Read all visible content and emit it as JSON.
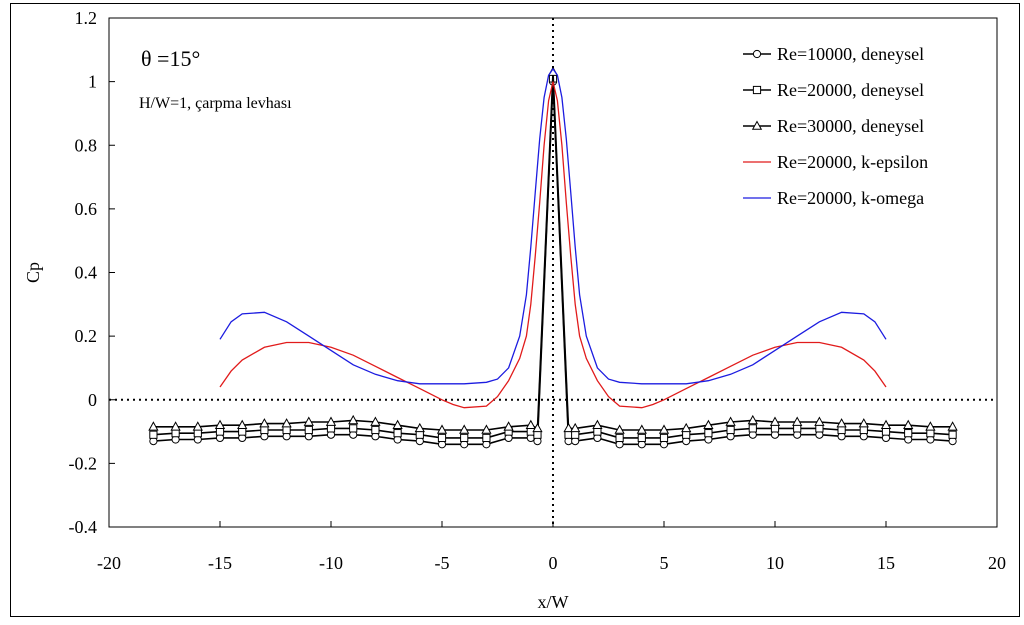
{
  "chart_data": {
    "type": "line",
    "xlabel": "x/W",
    "ylabel": "Cp",
    "xlim": [
      -20,
      20
    ],
    "ylim": [
      -0.4,
      1.2
    ],
    "x_ticks": [
      "-20",
      "-15",
      "-10",
      "-5",
      "0",
      "5",
      "10",
      "15",
      "20"
    ],
    "y_ticks": [
      "-0.4",
      "-0.2",
      "0",
      "0.2",
      "0.4",
      "0.6",
      "0.8",
      "1",
      "1.2"
    ],
    "grid": false,
    "legend_position": "top-right",
    "annotations": {
      "angle": "θ =15°",
      "config": "H/W=1, çarpma levhası"
    },
    "reference_lines": {
      "x": 0,
      "y": 0,
      "style": "dotted"
    },
    "series": [
      {
        "name": "Re=10000, deneysel",
        "marker": "circle",
        "color": "#000000",
        "x": [
          -18,
          -17,
          -16,
          -15,
          -14,
          -13,
          -12,
          -11,
          -10,
          -9,
          -8,
          -7,
          -6,
          -5,
          -4,
          -3,
          -2,
          -1,
          -0.7,
          0,
          0.7,
          1,
          2,
          3,
          4,
          5,
          6,
          7,
          8,
          9,
          10,
          11,
          12,
          13,
          14,
          15,
          16,
          17,
          18
        ],
        "y": [
          -0.13,
          -0.125,
          -0.125,
          -0.12,
          -0.12,
          -0.115,
          -0.115,
          -0.115,
          -0.11,
          -0.11,
          -0.115,
          -0.125,
          -0.13,
          -0.14,
          -0.14,
          -0.14,
          -0.12,
          -0.12,
          -0.13,
          1.0,
          -0.13,
          -0.13,
          -0.12,
          -0.14,
          -0.14,
          -0.14,
          -0.13,
          -0.125,
          -0.115,
          -0.11,
          -0.11,
          -0.11,
          -0.11,
          -0.115,
          -0.115,
          -0.12,
          -0.125,
          -0.125,
          -0.13
        ]
      },
      {
        "name": "Re=20000, deneysel",
        "marker": "square",
        "color": "#000000",
        "x": [
          -18,
          -17,
          -16,
          -15,
          -14,
          -13,
          -12,
          -11,
          -10,
          -9,
          -8,
          -7,
          -6,
          -5,
          -4,
          -3,
          -2,
          -1,
          -0.7,
          0,
          0.7,
          1,
          2,
          3,
          4,
          5,
          6,
          7,
          8,
          9,
          10,
          11,
          12,
          13,
          14,
          15,
          16,
          17,
          18
        ],
        "y": [
          -0.11,
          -0.105,
          -0.105,
          -0.1,
          -0.1,
          -0.095,
          -0.095,
          -0.095,
          -0.09,
          -0.09,
          -0.095,
          -0.105,
          -0.11,
          -0.12,
          -0.12,
          -0.12,
          -0.1,
          -0.1,
          -0.11,
          1.01,
          -0.11,
          -0.11,
          -0.1,
          -0.12,
          -0.12,
          -0.12,
          -0.11,
          -0.105,
          -0.095,
          -0.09,
          -0.09,
          -0.09,
          -0.09,
          -0.095,
          -0.095,
          -0.1,
          -0.105,
          -0.105,
          -0.11
        ]
      },
      {
        "name": "Re=30000, deneysel",
        "marker": "triangle",
        "color": "#000000",
        "x": [
          -18,
          -17,
          -16,
          -15,
          -14,
          -13,
          -12,
          -11,
          -10,
          -9,
          -8,
          -7,
          -6,
          -5,
          -4,
          -3,
          -2,
          -1,
          -0.7,
          0,
          0.7,
          1,
          2,
          3,
          4,
          5,
          6,
          7,
          8,
          9,
          10,
          11,
          12,
          13,
          14,
          15,
          16,
          17,
          18
        ],
        "y": [
          -0.085,
          -0.085,
          -0.085,
          -0.08,
          -0.08,
          -0.075,
          -0.075,
          -0.07,
          -0.07,
          -0.065,
          -0.07,
          -0.08,
          -0.09,
          -0.095,
          -0.095,
          -0.095,
          -0.085,
          -0.08,
          -0.09,
          1.03,
          -0.09,
          -0.09,
          -0.08,
          -0.095,
          -0.095,
          -0.095,
          -0.09,
          -0.08,
          -0.07,
          -0.065,
          -0.07,
          -0.07,
          -0.07,
          -0.075,
          -0.075,
          -0.08,
          -0.08,
          -0.085,
          -0.085
        ]
      },
      {
        "name": "Re=20000, k-epsilon",
        "marker": "none",
        "color": "#e11b1b",
        "x": [
          -15,
          -14.5,
          -14,
          -13,
          -12,
          -11,
          -10,
          -9,
          -8,
          -7,
          -6,
          -5,
          -4.5,
          -4,
          -3,
          -2.5,
          -2,
          -1.5,
          -1.2,
          -1,
          -0.8,
          -0.6,
          -0.4,
          -0.2,
          0,
          0.2,
          0.4,
          0.6,
          0.8,
          1,
          1.2,
          1.5,
          2,
          2.5,
          3,
          4,
          4.5,
          5,
          6,
          7,
          8,
          9,
          10,
          11,
          12,
          13,
          14,
          14.5,
          15
        ],
        "y": [
          0.04,
          0.09,
          0.125,
          0.165,
          0.18,
          0.18,
          0.165,
          0.14,
          0.105,
          0.07,
          0.035,
          0.0,
          -0.015,
          -0.025,
          -0.02,
          0.01,
          0.06,
          0.13,
          0.2,
          0.3,
          0.45,
          0.62,
          0.8,
          0.94,
          1.0,
          0.94,
          0.8,
          0.62,
          0.45,
          0.3,
          0.2,
          0.13,
          0.06,
          0.01,
          -0.02,
          -0.025,
          -0.015,
          0.0,
          0.035,
          0.07,
          0.105,
          0.14,
          0.165,
          0.18,
          0.18,
          0.165,
          0.125,
          0.09,
          0.04
        ]
      },
      {
        "name": "Re=20000, k-omega",
        "marker": "none",
        "color": "#1c1ce0",
        "x": [
          -15,
          -14.5,
          -14,
          -13,
          -12,
          -11,
          -10,
          -9,
          -8,
          -7,
          -6,
          -5,
          -4,
          -3,
          -2.5,
          -2,
          -1.5,
          -1.2,
          -1,
          -0.8,
          -0.6,
          -0.4,
          -0.2,
          0,
          0.2,
          0.4,
          0.6,
          0.8,
          1,
          1.2,
          1.5,
          2,
          2.5,
          3,
          4,
          5,
          6,
          7,
          8,
          9,
          10,
          11,
          12,
          13,
          14,
          14.5,
          15
        ],
        "y": [
          0.19,
          0.245,
          0.27,
          0.275,
          0.245,
          0.2,
          0.155,
          0.11,
          0.08,
          0.06,
          0.05,
          0.05,
          0.05,
          0.055,
          0.065,
          0.1,
          0.2,
          0.33,
          0.48,
          0.65,
          0.82,
          0.95,
          1.02,
          1.04,
          1.02,
          0.95,
          0.82,
          0.65,
          0.48,
          0.33,
          0.2,
          0.1,
          0.065,
          0.055,
          0.05,
          0.05,
          0.05,
          0.06,
          0.08,
          0.11,
          0.155,
          0.2,
          0.245,
          0.275,
          0.27,
          0.245,
          0.19
        ]
      }
    ]
  }
}
